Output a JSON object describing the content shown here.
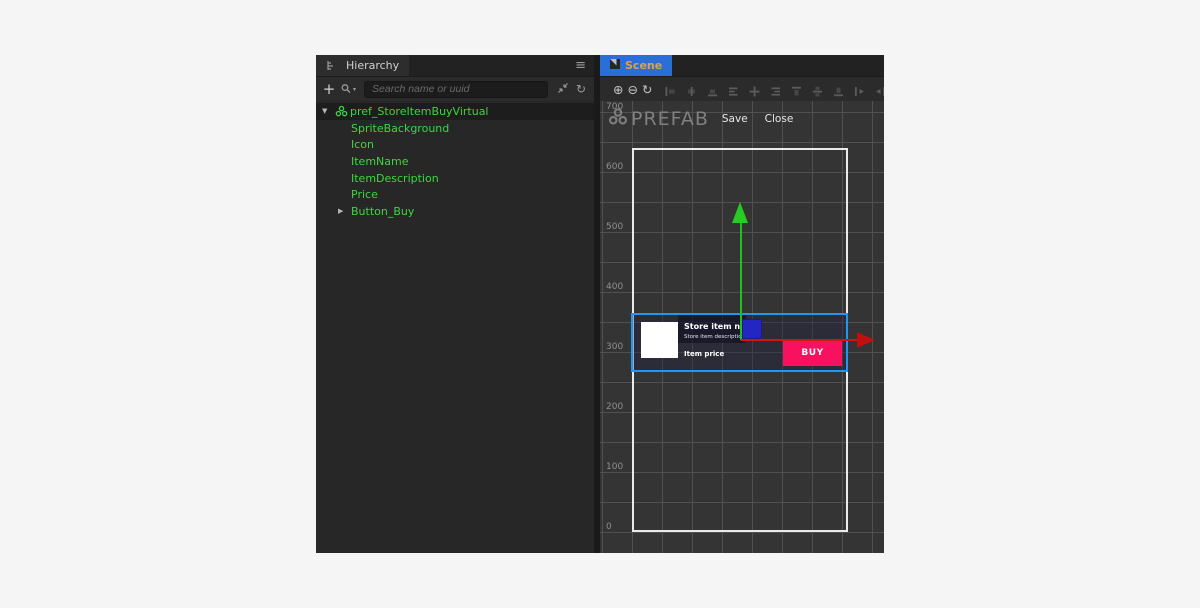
{
  "colors": {
    "accent_blue": "#2a6fd6",
    "selection_blue": "#2196f3",
    "node_green": "#3ed63e",
    "buy_pink": "#f7115f",
    "gizmo_green": "#24cc24",
    "gizmo_red": "#bf0f0f",
    "gizmo_handle_blue": "#2326c3"
  },
  "icons": {
    "menu": "≡",
    "add": "+",
    "refresh": "↻",
    "caret_down": "▼",
    "caret_right": "▶",
    "search_caret": "▾"
  },
  "hierarchy": {
    "tab_label": "Hierarchy",
    "search_placeholder": "Search name or uuid",
    "tree": [
      {
        "label": "pref_StoreItemBuyVirtual",
        "depth": 0,
        "caret": "down",
        "icon": "prefab",
        "selected": true
      },
      {
        "label": "SpriteBackground",
        "depth": 1,
        "caret": "none",
        "icon": "none",
        "selected": false
      },
      {
        "label": "Icon",
        "depth": 1,
        "caret": "none",
        "icon": "none",
        "selected": false
      },
      {
        "label": "ItemName",
        "depth": 1,
        "caret": "none",
        "icon": "none",
        "selected": false
      },
      {
        "label": "ItemDescription",
        "depth": 1,
        "caret": "none",
        "icon": "none",
        "selected": false
      },
      {
        "label": "Price",
        "depth": 1,
        "caret": "none",
        "icon": "none",
        "selected": false
      },
      {
        "label": "Button_Buy",
        "depth": 1,
        "caret": "right",
        "icon": "none",
        "selected": false
      }
    ]
  },
  "scene": {
    "tab_label": "Scene",
    "toolbar": {
      "zoom_in": "⊕",
      "zoom_out": "⊖",
      "reset": "↻",
      "align_icons": [
        "anchor-left",
        "anchor-center",
        "anchor-bottom",
        "align-left",
        "align-vcenter",
        "align-right",
        "align-top",
        "align-middle",
        "align-bottom",
        "distribute-h",
        "distribute-v"
      ]
    },
    "prefab_bar": {
      "title": "PREFAB",
      "save_label": "Save",
      "close_label": "Close"
    },
    "ruler_labels": [
      "700",
      "600",
      "500",
      "400",
      "300",
      "200",
      "100",
      "0"
    ],
    "store_item": {
      "name": "Store item name",
      "description": "Store item description",
      "price": "Item price",
      "buy_label": "BUY"
    }
  }
}
